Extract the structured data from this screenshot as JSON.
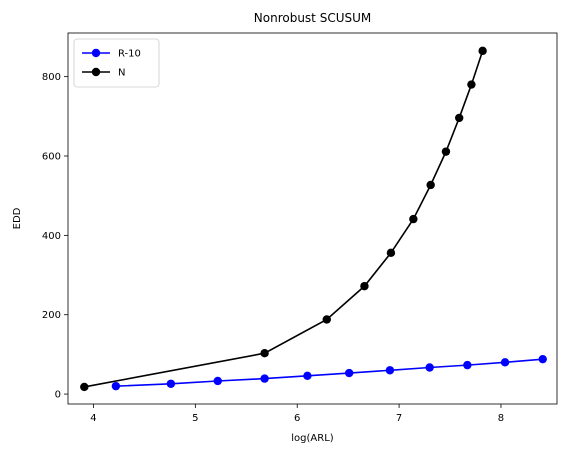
{
  "chart_data": {
    "type": "line",
    "title": "Nonrobust SCUSUM",
    "xlabel": "log(ARL)",
    "ylabel": "EDD",
    "xlim": [
      3.75,
      8.55
    ],
    "ylim": [
      -25,
      910
    ],
    "xticks": [
      4,
      5,
      6,
      7,
      8
    ],
    "yticks": [
      0,
      200,
      400,
      600,
      800
    ],
    "grid": false,
    "legend_position": "top-left",
    "series": [
      {
        "name": "R-10",
        "color": "#0000ff",
        "x": [
          4.22,
          4.76,
          5.22,
          5.68,
          6.1,
          6.51,
          6.91,
          7.3,
          7.67,
          8.04,
          8.41
        ],
        "y": [
          20,
          26,
          33,
          39,
          46,
          53,
          60,
          67,
          73,
          80,
          88
        ]
      },
      {
        "name": "N",
        "color": "#000000",
        "x": [
          3.91,
          5.68,
          6.29,
          6.66,
          6.92,
          7.14,
          7.31,
          7.46,
          7.59,
          7.71,
          7.82
        ],
        "y": [
          18,
          103,
          188,
          272,
          356,
          441,
          527,
          611,
          696,
          780,
          865
        ]
      }
    ]
  }
}
